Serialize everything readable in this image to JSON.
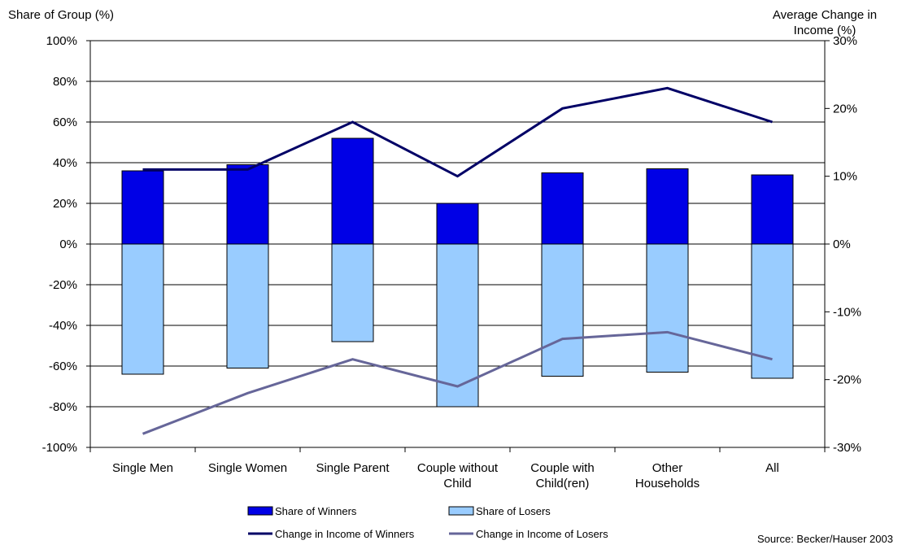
{
  "chart_data": {
    "type": "bar",
    "categories": [
      [
        "Single Men"
      ],
      [
        "Single Women"
      ],
      [
        "Single Parent"
      ],
      [
        "Couple without",
        "Child"
      ],
      [
        "Couple with",
        "Child(ren)"
      ],
      [
        "Other",
        "Households"
      ],
      [
        "All"
      ]
    ],
    "y_left": {
      "label": "Share of Group (%)",
      "range": [
        -100,
        100
      ],
      "ticks": [
        "100%",
        "80%",
        "60%",
        "40%",
        "20%",
        "0%",
        "-20%",
        "-40%",
        "-60%",
        "-80%",
        "-100%"
      ]
    },
    "y_right": {
      "label": [
        "Average Change in",
        "Income (%)"
      ],
      "range": [
        -30,
        30
      ],
      "ticks": [
        "30%",
        "20%",
        "10%",
        "0%",
        "-10%",
        "-20%",
        "-30%"
      ]
    },
    "bar_series": [
      {
        "name": "Share of Winners",
        "color": "#0000e6",
        "values": [
          36,
          39,
          52,
          20,
          35,
          37,
          34
        ]
      },
      {
        "name": "Share of Losers",
        "color": "#99ccff",
        "values": [
          -64,
          -61,
          -48,
          -80,
          -65,
          -63,
          -66
        ]
      }
    ],
    "line_series": [
      {
        "name": "Change in Income of Winners",
        "color": "#000066",
        "axis": "right",
        "values": [
          11,
          11,
          18,
          10,
          20,
          23,
          18
        ]
      },
      {
        "name": "Change in Income of Losers",
        "color": "#666699",
        "axis": "right",
        "values": [
          -28,
          -22,
          -17,
          -21,
          -14,
          -13,
          -17
        ]
      }
    ],
    "grid": true,
    "legend_position": "bottom",
    "source": "Source: Becker/Hauser 2003"
  }
}
